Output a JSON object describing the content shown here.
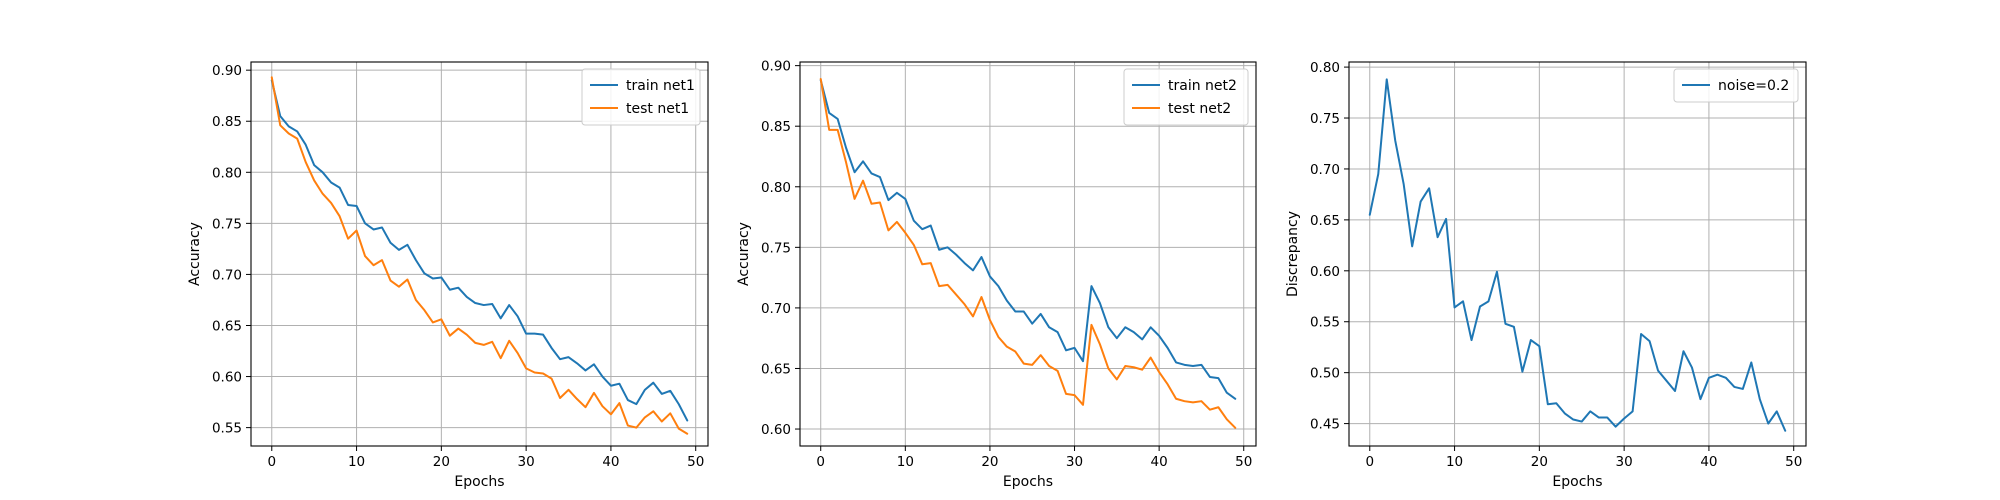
{
  "chart_data": [
    {
      "type": "line",
      "title": "",
      "xlabel": "Epochs",
      "ylabel": "Accuracy",
      "xlim": [
        -2.45,
        51.45
      ],
      "ylim": [
        0.532,
        0.908
      ],
      "xticks": [
        0,
        10,
        20,
        30,
        40,
        50
      ],
      "yticks": [
        0.55,
        0.6,
        0.65,
        0.7,
        0.75,
        0.8,
        0.85,
        0.9
      ],
      "ytick_decimals": 2,
      "grid": true,
      "legend_placement": "top-right",
      "series": [
        {
          "name": "train net1",
          "color": "#1f77b4",
          "x": [
            0,
            1,
            2,
            3,
            4,
            5,
            6,
            7,
            8,
            9,
            10,
            11,
            12,
            13,
            14,
            15,
            16,
            17,
            18,
            19,
            20,
            21,
            22,
            23,
            24,
            25,
            26,
            27,
            28,
            29,
            30,
            31,
            32,
            33,
            34,
            35,
            36,
            37,
            38,
            39,
            40,
            41,
            42,
            43,
            44,
            45,
            46,
            47,
            48,
            49
          ],
          "y": [
            0.89,
            0.855,
            0.845,
            0.84,
            0.827,
            0.807,
            0.8,
            0.79,
            0.785,
            0.768,
            0.767,
            0.75,
            0.744,
            0.746,
            0.731,
            0.724,
            0.729,
            0.714,
            0.701,
            0.696,
            0.697,
            0.685,
            0.687,
            0.678,
            0.672,
            0.67,
            0.671,
            0.657,
            0.67,
            0.659,
            0.642,
            0.642,
            0.641,
            0.628,
            0.617,
            0.619,
            0.613,
            0.606,
            0.612,
            0.6,
            0.591,
            0.593,
            0.577,
            0.573,
            0.587,
            0.594,
            0.583,
            0.586,
            0.573,
            0.557
          ]
        },
        {
          "name": "test net1",
          "color": "#ff7f0e",
          "x": [
            0,
            1,
            2,
            3,
            4,
            5,
            6,
            7,
            8,
            9,
            10,
            11,
            12,
            13,
            14,
            15,
            16,
            17,
            18,
            19,
            20,
            21,
            22,
            23,
            24,
            25,
            26,
            27,
            28,
            29,
            30,
            31,
            32,
            33,
            34,
            35,
            36,
            37,
            38,
            39,
            40,
            41,
            42,
            43,
            44,
            45,
            46,
            47,
            48,
            49
          ],
          "y": [
            0.893,
            0.846,
            0.838,
            0.833,
            0.81,
            0.792,
            0.779,
            0.77,
            0.757,
            0.735,
            0.743,
            0.718,
            0.709,
            0.714,
            0.694,
            0.688,
            0.695,
            0.675,
            0.665,
            0.653,
            0.656,
            0.64,
            0.647,
            0.641,
            0.633,
            0.631,
            0.634,
            0.618,
            0.635,
            0.623,
            0.608,
            0.604,
            0.603,
            0.598,
            0.579,
            0.587,
            0.578,
            0.57,
            0.584,
            0.571,
            0.563,
            0.574,
            0.552,
            0.55,
            0.56,
            0.566,
            0.556,
            0.564,
            0.549,
            0.544
          ]
        }
      ]
    },
    {
      "type": "line",
      "title": "",
      "xlabel": "Epochs",
      "ylabel": "Accuracy",
      "xlim": [
        -2.45,
        51.45
      ],
      "ylim": [
        0.586,
        0.903
      ],
      "xticks": [
        0,
        10,
        20,
        30,
        40,
        50
      ],
      "yticks": [
        0.6,
        0.65,
        0.7,
        0.75,
        0.8,
        0.85,
        0.9
      ],
      "ytick_decimals": 2,
      "grid": true,
      "legend_placement": "top-right",
      "series": [
        {
          "name": "train net2",
          "color": "#1f77b4",
          "x": [
            0,
            1,
            2,
            3,
            4,
            5,
            6,
            7,
            8,
            9,
            10,
            11,
            12,
            13,
            14,
            15,
            16,
            17,
            18,
            19,
            20,
            21,
            22,
            23,
            24,
            25,
            26,
            27,
            28,
            29,
            30,
            31,
            32,
            33,
            34,
            35,
            36,
            37,
            38,
            39,
            40,
            41,
            42,
            43,
            44,
            45,
            46,
            47,
            48,
            49
          ],
          "y": [
            0.888,
            0.861,
            0.856,
            0.832,
            0.812,
            0.821,
            0.811,
            0.808,
            0.789,
            0.795,
            0.79,
            0.772,
            0.765,
            0.768,
            0.748,
            0.75,
            0.744,
            0.737,
            0.731,
            0.742,
            0.726,
            0.718,
            0.706,
            0.697,
            0.697,
            0.687,
            0.695,
            0.684,
            0.68,
            0.665,
            0.667,
            0.656,
            0.718,
            0.704,
            0.684,
            0.675,
            0.684,
            0.68,
            0.674,
            0.684,
            0.677,
            0.667,
            0.655,
            0.653,
            0.652,
            0.653,
            0.643,
            0.642,
            0.63,
            0.625
          ]
        },
        {
          "name": "test net2",
          "color": "#ff7f0e",
          "x": [
            0,
            1,
            2,
            3,
            4,
            5,
            6,
            7,
            8,
            9,
            10,
            11,
            12,
            13,
            14,
            15,
            16,
            17,
            18,
            19,
            20,
            21,
            22,
            23,
            24,
            25,
            26,
            27,
            28,
            29,
            30,
            31,
            32,
            33,
            34,
            35,
            36,
            37,
            38,
            39,
            40,
            41,
            42,
            43,
            44,
            45,
            46,
            47,
            48,
            49
          ],
          "y": [
            0.889,
            0.847,
            0.847,
            0.82,
            0.79,
            0.805,
            0.786,
            0.787,
            0.764,
            0.771,
            0.762,
            0.752,
            0.736,
            0.737,
            0.718,
            0.719,
            0.711,
            0.703,
            0.693,
            0.709,
            0.69,
            0.676,
            0.668,
            0.664,
            0.654,
            0.653,
            0.661,
            0.652,
            0.648,
            0.629,
            0.628,
            0.62,
            0.686,
            0.67,
            0.65,
            0.641,
            0.652,
            0.651,
            0.649,
            0.659,
            0.647,
            0.637,
            0.625,
            0.623,
            0.622,
            0.623,
            0.616,
            0.618,
            0.608,
            0.601
          ]
        }
      ]
    },
    {
      "type": "line",
      "title": "",
      "xlabel": "Epochs",
      "ylabel": "Discrepancy",
      "xlim": [
        -2.45,
        51.45
      ],
      "ylim": [
        0.428,
        0.805
      ],
      "xticks": [
        0,
        10,
        20,
        30,
        40,
        50
      ],
      "yticks": [
        0.45,
        0.5,
        0.55,
        0.6,
        0.65,
        0.7,
        0.75,
        0.8
      ],
      "ytick_decimals": 2,
      "grid": true,
      "legend_placement": "top-right",
      "series": [
        {
          "name": "noise=0.2",
          "color": "#1f77b4",
          "x": [
            0,
            1,
            2,
            3,
            4,
            5,
            6,
            7,
            8,
            9,
            10,
            11,
            12,
            13,
            14,
            15,
            16,
            17,
            18,
            19,
            20,
            21,
            22,
            23,
            24,
            25,
            26,
            27,
            28,
            29,
            30,
            31,
            32,
            33,
            34,
            35,
            36,
            37,
            38,
            39,
            40,
            41,
            42,
            43,
            44,
            45,
            46,
            47,
            48,
            49
          ],
          "y": [
            0.655,
            0.695,
            0.788,
            0.728,
            0.685,
            0.624,
            0.668,
            0.681,
            0.633,
            0.651,
            0.564,
            0.57,
            0.532,
            0.565,
            0.57,
            0.599,
            0.548,
            0.545,
            0.501,
            0.532,
            0.526,
            0.469,
            0.47,
            0.46,
            0.454,
            0.452,
            0.462,
            0.456,
            0.456,
            0.447,
            0.455,
            0.462,
            0.538,
            0.531,
            0.502,
            0.492,
            0.482,
            0.521,
            0.505,
            0.474,
            0.495,
            0.498,
            0.495,
            0.486,
            0.484,
            0.51,
            0.474,
            0.45,
            0.462,
            0.443
          ]
        }
      ]
    }
  ]
}
